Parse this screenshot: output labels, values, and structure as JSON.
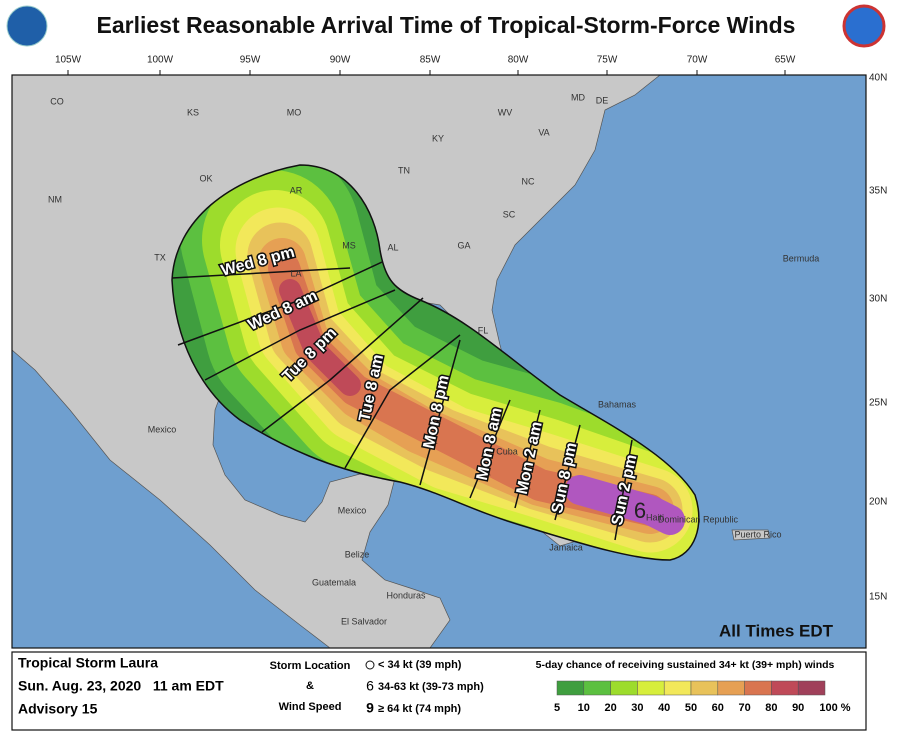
{
  "header": {
    "title": "Earliest Reasonable Arrival Time of Tropical-Storm-Force Winds"
  },
  "map": {
    "longitude_labels": [
      "105W",
      "100W",
      "95W",
      "90W",
      "85W",
      "80W",
      "75W",
      "70W",
      "65W"
    ],
    "latitude_labels": [
      "40N",
      "35N",
      "30N",
      "25N",
      "20N",
      "15N"
    ],
    "place_labels": [
      "CO",
      "KS",
      "MO",
      "KY",
      "WV",
      "VA",
      "MD",
      "DE",
      "NM",
      "OK",
      "AR",
      "TN",
      "NC",
      "TX",
      "LA",
      "MS",
      "AL",
      "GA",
      "SC",
      "FL",
      "Bermuda",
      "Bahamas",
      "Mexico",
      "Cuba",
      "Haiti",
      "Dominican Republic",
      "Puerto Rico",
      "Jamaica",
      "Mexico",
      "Belize",
      "Guatemala",
      "Honduras",
      "El Salvador"
    ],
    "arrival_times": [
      "Wed 8 pm",
      "Wed 8 am",
      "Tue 8 pm",
      "Tue 8 am",
      "Mon 8 pm",
      "Mon 8 am",
      "Mon 2 am",
      "Sun 8 pm",
      "Sun 2 pm"
    ],
    "time_note": "All Times EDT"
  },
  "legend": {
    "storm": "Tropical Storm Laura",
    "issued": "Sun. Aug. 23, 2020   11 am EDT",
    "advisory": "Advisory 15",
    "storm_location_title": "Storm Location",
    "and": "&",
    "wind_speed_title": "Wind Speed",
    "symbols": [
      "< 34 kt (39 mph)",
      "34-63 kt (39-73 mph)",
      "≥ 64 kt (74 mph)"
    ],
    "scale_title": "5-day chance of receiving sustained 34+ kt (39+ mph) winds",
    "scale_labels": [
      "5",
      "10",
      "20",
      "30",
      "40",
      "50",
      "60",
      "70",
      "80",
      "90",
      "100 %"
    ]
  }
}
